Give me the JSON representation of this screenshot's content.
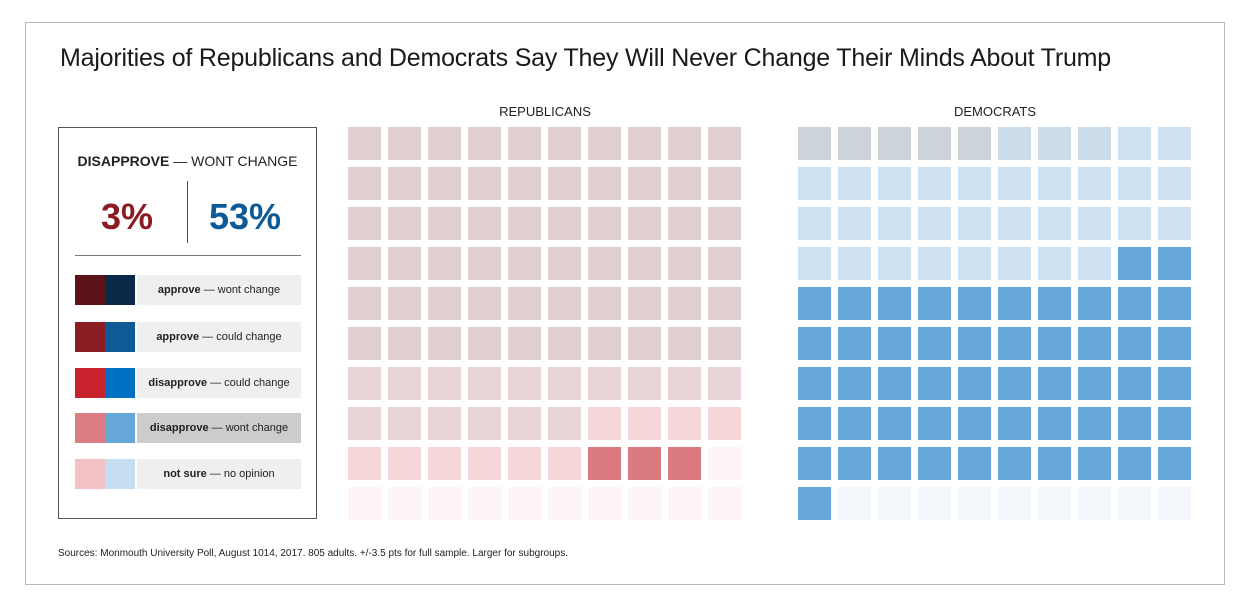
{
  "title": "Majorities of Republicans and Democrats Say They Will Never Change Their Minds About Trump",
  "source": "Sources: Monmouth University Poll, August 1014, 2017. 805 adults. +/-3.5 pts for full sample. Larger for subgroups.",
  "legend": {
    "headline_bold": "DISAPPROVE",
    "headline_rest": " — WONT CHANGE",
    "rep_value": "3%",
    "dem_value": "53%",
    "items": [
      {
        "bold": "approve",
        "rest": " — wont change",
        "rep_color": "#5c1219",
        "dem_color": "#0a2848"
      },
      {
        "bold": "approve",
        "rest": " — could change",
        "rep_color": "#8b1c24",
        "dem_color": "#0e5a96"
      },
      {
        "bold": "disapprove",
        "rest": " — could change",
        "rep_color": "#c8232c",
        "dem_color": "#0070c2"
      },
      {
        "bold": "disapprove",
        "rest": " — wont change",
        "rep_color": "#dc7b81",
        "dem_color": "#66a9d8"
      },
      {
        "bold": "not sure",
        "rest": " — no opinion",
        "rep_color": "#f3c2c6",
        "dem_color": "#c6def1"
      }
    ]
  },
  "chart_data": [
    {
      "type": "waffle",
      "title": "REPUBLICANS",
      "categories": [
        "approve — wont change",
        "approve — could change",
        "disapprove — could change",
        "disapprove — wont change",
        "not sure — no opinion"
      ],
      "values": [
        0,
        0,
        0,
        3,
        0
      ],
      "cell_states": [
        "m",
        "m",
        "m",
        "m",
        "m",
        "m",
        "m",
        "m",
        "m",
        "m",
        "m",
        "m",
        "m",
        "m",
        "m",
        "m",
        "m",
        "m",
        "m",
        "m",
        "m",
        "m",
        "m",
        "m",
        "m",
        "m",
        "m",
        "m",
        "m",
        "m",
        "m",
        "m",
        "m",
        "m",
        "m",
        "m",
        "m",
        "m",
        "m",
        "m",
        "m",
        "m",
        "m",
        "m",
        "m",
        "m",
        "m",
        "m",
        "m",
        "m",
        "m",
        "m",
        "m",
        "m",
        "m",
        "m",
        "m",
        "m",
        "m",
        "m",
        "m2",
        "m2",
        "m2",
        "m2",
        "m2",
        "m2",
        "m2",
        "m2",
        "m2",
        "m2",
        "m2",
        "m2",
        "m2",
        "m2",
        "m2",
        "m2",
        "p",
        "p",
        "p",
        "p",
        "p",
        "p",
        "p",
        "p",
        "p",
        "p",
        "d",
        "d",
        "d",
        "f",
        "f",
        "f",
        "f",
        "f",
        "f",
        "f",
        "f",
        "f",
        "f",
        "f"
      ],
      "colors": {
        "m": "#dfcfd1",
        "m2": "#e8d5d7",
        "p": "#f5d6d9",
        "d": "#db7a80",
        "f": "#fdf4f5"
      }
    },
    {
      "type": "waffle",
      "title": "DEMOCRATS",
      "categories": [
        "approve — wont change",
        "approve — could change",
        "disapprove — could change",
        "disapprove — wont change",
        "not sure — no opinion"
      ],
      "values": [
        0,
        0,
        0,
        53,
        0
      ],
      "cell_states": [
        "g",
        "g",
        "g",
        "g",
        "g",
        "s",
        "s",
        "s",
        "l",
        "l",
        "l",
        "l",
        "l",
        "l",
        "l",
        "l",
        "l",
        "l",
        "l",
        "l",
        "l",
        "l",
        "l",
        "l",
        "l",
        "l",
        "l",
        "l",
        "l",
        "l",
        "l",
        "l",
        "l",
        "l",
        "l",
        "l",
        "l",
        "l",
        "d",
        "d",
        "d",
        "d",
        "d",
        "d",
        "d",
        "d",
        "d",
        "d",
        "d",
        "d",
        "d",
        "d",
        "d",
        "d",
        "d",
        "d",
        "d",
        "d",
        "d",
        "d",
        "d",
        "d",
        "d",
        "d",
        "d",
        "d",
        "d",
        "d",
        "d",
        "d",
        "d",
        "d",
        "d",
        "d",
        "d",
        "d",
        "d",
        "d",
        "d",
        "d",
        "d",
        "d",
        "d",
        "d",
        "d",
        "d",
        "d",
        "d",
        "d",
        "d",
        "d",
        "f",
        "f",
        "f",
        "f",
        "f",
        "f",
        "f",
        "f",
        "f"
      ],
      "colors": {
        "g": "#ccd3db",
        "s": "#ccdde9",
        "l": "#cfe2f3",
        "d": "#66a9d8",
        "f": "#f3f7fc"
      }
    }
  ]
}
